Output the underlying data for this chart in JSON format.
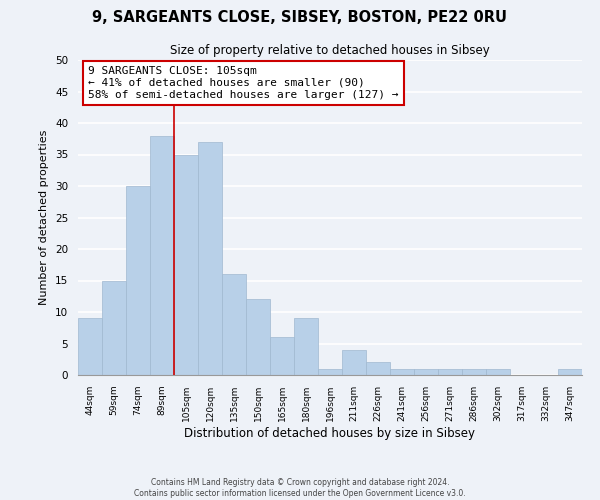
{
  "title": "9, SARGEANTS CLOSE, SIBSEY, BOSTON, PE22 0RU",
  "subtitle": "Size of property relative to detached houses in Sibsey",
  "xlabel": "Distribution of detached houses by size in Sibsey",
  "ylabel": "Number of detached properties",
  "bar_labels": [
    "44sqm",
    "59sqm",
    "74sqm",
    "89sqm",
    "105sqm",
    "120sqm",
    "135sqm",
    "150sqm",
    "165sqm",
    "180sqm",
    "196sqm",
    "211sqm",
    "226sqm",
    "241sqm",
    "256sqm",
    "271sqm",
    "286sqm",
    "302sqm",
    "317sqm",
    "332sqm",
    "347sqm"
  ],
  "bar_values": [
    9,
    15,
    30,
    38,
    35,
    37,
    16,
    12,
    6,
    9,
    1,
    4,
    2,
    1,
    1,
    1,
    1,
    1,
    0,
    0,
    1
  ],
  "bar_color": "#b8d0e8",
  "bar_edge_color": "#a0b8d0",
  "highlight_line_color": "#cc0000",
  "highlight_line_index": 4,
  "annotation_text": "9 SARGEANTS CLOSE: 105sqm\n← 41% of detached houses are smaller (90)\n58% of semi-detached houses are larger (127) →",
  "annotation_box_color": "#ffffff",
  "annotation_box_edge_color": "#cc0000",
  "ylim": [
    0,
    50
  ],
  "yticks": [
    0,
    5,
    10,
    15,
    20,
    25,
    30,
    35,
    40,
    45,
    50
  ],
  "background_color": "#eef2f8",
  "grid_color": "#ffffff",
  "footer_line1": "Contains HM Land Registry data © Crown copyright and database right 2024.",
  "footer_line2": "Contains public sector information licensed under the Open Government Licence v3.0."
}
